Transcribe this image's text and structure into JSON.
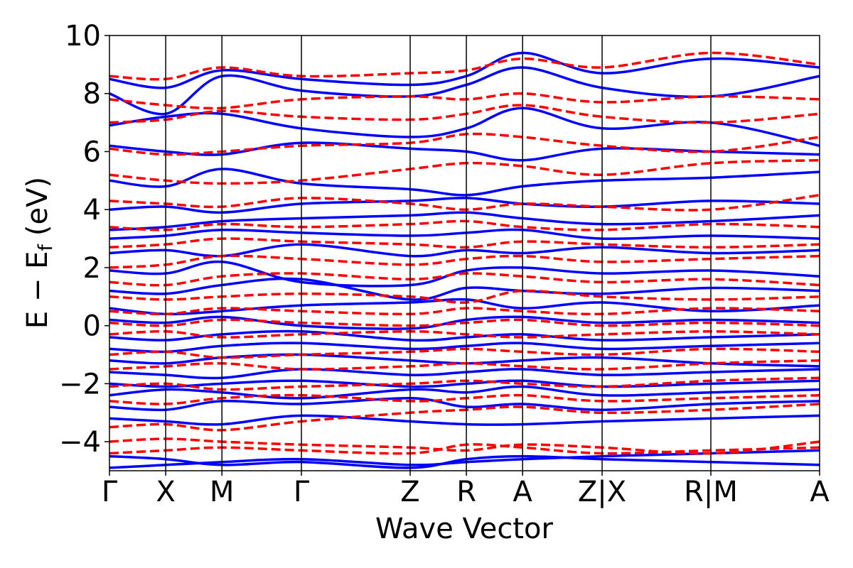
{
  "chart_data": {
    "type": "line",
    "title": "",
    "xlabel": "Wave Vector",
    "ylabel_main": "E − E",
    "ylabel_sub": "f",
    "ylabel_unit": "(eV)",
    "ylim": [
      -5,
      10
    ],
    "yticks": [
      -4,
      -2,
      0,
      2,
      4,
      6,
      8,
      10
    ],
    "ytick_labels": [
      "−4",
      "−2",
      "0",
      "2",
      "4",
      "6",
      "8",
      "10"
    ],
    "k_path": [
      {
        "label": "Γ",
        "k": 0.0
      },
      {
        "label": "X",
        "k": 0.5
      },
      {
        "label": "M",
        "k": 1.0
      },
      {
        "label": "Γ",
        "k": 1.707
      },
      {
        "label": "Z",
        "k": 2.674
      },
      {
        "label": "R",
        "k": 3.174
      },
      {
        "label": "A",
        "k": 3.674
      },
      {
        "label": "Z|X",
        "k": 4.381
      },
      {
        "label": "R|M",
        "k": 5.348
      },
      {
        "label": "A",
        "k": 6.315
      }
    ],
    "xlim": [
      0,
      6.315
    ],
    "grid": false,
    "legend": "none",
    "series": [
      {
        "style": "solid",
        "color": "#0000ff",
        "bands": [
          [
            -4.9,
            -4.8,
            -4.7,
            -4.6,
            -4.8,
            -4.7,
            -4.6,
            -4.5,
            -4.4,
            -4.3
          ],
          [
            -4.5,
            -4.6,
            -4.8,
            -4.7,
            -4.9,
            -4.6,
            -4.5,
            -4.6,
            -4.7,
            -4.8
          ],
          [
            -3.2,
            -3.3,
            -3.4,
            -3.1,
            -3.3,
            -3.4,
            -3.4,
            -3.3,
            -3.2,
            -3.1
          ],
          [
            -2.8,
            -2.9,
            -2.6,
            -2.7,
            -2.5,
            -2.8,
            -2.7,
            -2.9,
            -2.7,
            -2.6
          ],
          [
            -2.4,
            -2.2,
            -2.3,
            -2.5,
            -2.2,
            -2.3,
            -2.1,
            -2.4,
            -2.3,
            -2.2
          ],
          [
            -2.0,
            -2.1,
            -2.0,
            -1.9,
            -2.1,
            -2.0,
            -1.9,
            -2.1,
            -2.0,
            -1.9
          ],
          [
            -1.6,
            -1.7,
            -1.8,
            -1.5,
            -1.7,
            -1.6,
            -1.5,
            -1.7,
            -1.6,
            -1.5
          ],
          [
            -1.2,
            -1.3,
            -1.1,
            -1.0,
            -1.2,
            -1.3,
            -1.2,
            -1.1,
            -1.3,
            -1.4
          ],
          [
            -0.8,
            -0.9,
            -0.7,
            -0.6,
            -0.8,
            -0.7,
            -0.6,
            -0.8,
            -0.7,
            -0.6
          ],
          [
            -0.4,
            -0.5,
            -0.3,
            -0.2,
            -0.5,
            -0.4,
            -0.3,
            -0.5,
            -0.4,
            -0.3
          ],
          [
            0.2,
            0.1,
            0.3,
            0.0,
            -0.1,
            0.2,
            0.3,
            0.1,
            0.2,
            0.1
          ],
          [
            0.6,
            0.4,
            0.5,
            0.7,
            0.8,
            0.9,
            0.6,
            0.8,
            0.5,
            0.7
          ],
          [
            1.2,
            1.1,
            1.4,
            1.6,
            0.9,
            1.3,
            1.2,
            1.1,
            1.3,
            1.2
          ],
          [
            1.9,
            1.8,
            2.2,
            1.5,
            1.4,
            1.9,
            2.0,
            1.8,
            1.9,
            1.7
          ],
          [
            2.5,
            2.6,
            2.4,
            2.8,
            2.4,
            2.6,
            2.5,
            2.7,
            2.5,
            2.6
          ],
          [
            3.0,
            3.1,
            3.3,
            3.2,
            3.1,
            3.2,
            3.3,
            3.0,
            3.1,
            3.0
          ],
          [
            3.3,
            3.4,
            3.6,
            3.7,
            3.8,
            3.9,
            3.7,
            3.5,
            3.6,
            3.8
          ],
          [
            4.0,
            4.1,
            3.9,
            4.2,
            4.3,
            4.4,
            4.2,
            4.1,
            4.3,
            4.2
          ],
          [
            5.0,
            4.8,
            5.4,
            4.9,
            4.7,
            4.5,
            4.8,
            5.0,
            5.1,
            5.3
          ],
          [
            6.2,
            6.0,
            5.9,
            6.3,
            6.1,
            6.0,
            5.7,
            6.1,
            6.0,
            5.9
          ],
          [
            6.9,
            7.2,
            7.3,
            6.8,
            6.5,
            6.8,
            7.5,
            6.8,
            7.0,
            6.2
          ],
          [
            8.0,
            7.3,
            8.6,
            8.1,
            7.9,
            8.3,
            8.9,
            8.2,
            7.9,
            8.6
          ],
          [
            8.5,
            8.2,
            8.8,
            8.5,
            8.3,
            8.6,
            9.4,
            8.7,
            9.2,
            8.9
          ]
        ]
      },
      {
        "style": "dashed",
        "color": "#ff0000",
        "bands": [
          [
            -4.4,
            -4.3,
            -4.2,
            -4.3,
            -4.4,
            -4.1,
            -4.2,
            -4.4,
            -4.3,
            -4.2
          ],
          [
            -4.0,
            -3.9,
            -4.0,
            -4.1,
            -4.2,
            -4.3,
            -4.1,
            -4.2,
            -4.4,
            -4.0
          ],
          [
            -3.5,
            -3.4,
            -3.6,
            -3.3,
            -3.0,
            -2.9,
            -2.8,
            -3.0,
            -2.9,
            -2.7
          ],
          [
            -2.6,
            -2.7,
            -2.5,
            -2.4,
            -2.6,
            -2.5,
            -2.4,
            -2.6,
            -2.5,
            -2.4
          ],
          [
            -2.1,
            -2.0,
            -2.2,
            -2.1,
            -2.0,
            -1.9,
            -2.0,
            -2.1,
            -1.9,
            -1.8
          ],
          [
            -1.5,
            -1.4,
            -1.3,
            -1.5,
            -1.4,
            -1.3,
            -1.4,
            -1.5,
            -1.3,
            -1.2
          ],
          [
            -1.0,
            -0.9,
            -1.1,
            -1.0,
            -0.9,
            -0.8,
            -0.9,
            -1.0,
            -0.8,
            -0.9
          ],
          [
            -0.3,
            -0.2,
            -0.4,
            -0.3,
            -0.2,
            -0.3,
            -0.4,
            -0.3,
            -0.2,
            -0.3
          ],
          [
            0.1,
            0.0,
            0.2,
            0.1,
            0.0,
            0.1,
            0.2,
            0.0,
            0.1,
            0.0
          ],
          [
            0.5,
            0.4,
            0.6,
            0.5,
            0.4,
            0.6,
            0.5,
            0.4,
            0.6,
            0.5
          ],
          [
            1.0,
            0.9,
            1.0,
            1.1,
            1.0,
            0.8,
            1.2,
            1.0,
            0.9,
            1.0
          ],
          [
            1.5,
            1.4,
            1.7,
            1.8,
            1.6,
            1.8,
            1.7,
            1.5,
            1.6,
            1.4
          ],
          [
            2.0,
            2.1,
            2.4,
            2.3,
            2.1,
            2.3,
            2.4,
            2.2,
            2.3,
            2.4
          ],
          [
            2.7,
            2.8,
            3.0,
            2.9,
            2.8,
            2.7,
            2.9,
            2.8,
            2.7,
            2.8
          ],
          [
            3.4,
            3.3,
            3.5,
            3.4,
            3.5,
            3.6,
            3.4,
            3.3,
            3.5,
            3.4
          ],
          [
            4.3,
            4.2,
            4.1,
            4.4,
            4.2,
            4.0,
            4.2,
            4.1,
            4.0,
            4.5
          ],
          [
            5.2,
            5.0,
            4.9,
            5.0,
            5.4,
            5.6,
            5.5,
            5.2,
            5.6,
            5.7
          ],
          [
            6.1,
            5.9,
            6.0,
            6.2,
            6.3,
            6.6,
            6.5,
            6.2,
            6.0,
            6.5
          ],
          [
            7.0,
            7.1,
            7.4,
            7.2,
            7.1,
            7.3,
            7.6,
            7.2,
            7.0,
            7.3
          ],
          [
            7.8,
            7.6,
            7.5,
            7.8,
            7.9,
            7.8,
            8.0,
            7.7,
            7.9,
            7.8
          ],
          [
            8.6,
            8.5,
            8.9,
            8.6,
            8.7,
            8.8,
            9.2,
            8.9,
            9.4,
            9.0
          ]
        ]
      }
    ]
  }
}
